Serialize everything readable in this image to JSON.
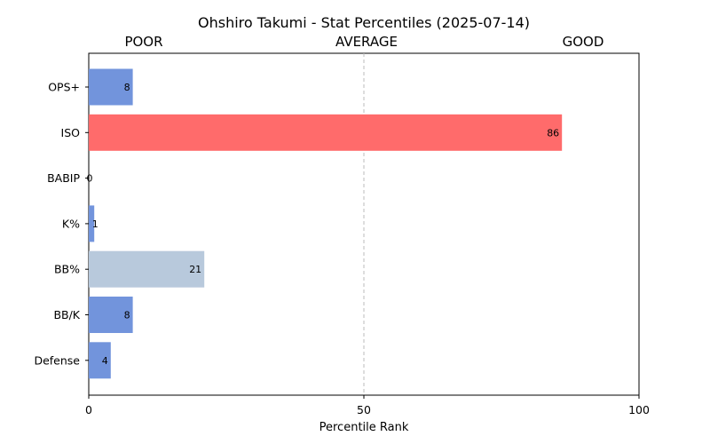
{
  "chart_data": {
    "type": "bar",
    "orientation": "horizontal",
    "title": "Ohshiro Takumi - Stat Percentiles (2025-07-14)",
    "xlabel": "Percentile Rank",
    "xlim": [
      0,
      100
    ],
    "xticks": [
      0,
      50,
      100
    ],
    "zone_labels": [
      "POOR",
      "AVERAGE",
      "GOOD"
    ],
    "reference_line": 50,
    "categories": [
      "OPS+",
      "ISO",
      "BABIP",
      "K%",
      "BB%",
      "BB/K",
      "Defense"
    ],
    "values": [
      8,
      86,
      0,
      1,
      21,
      8,
      4
    ],
    "bar_colors": [
      "#7294dc",
      "#ff6b6b",
      "#7294dc",
      "#7294dc",
      "#b8c9dc",
      "#7294dc",
      "#7294dc"
    ],
    "grid": false
  }
}
